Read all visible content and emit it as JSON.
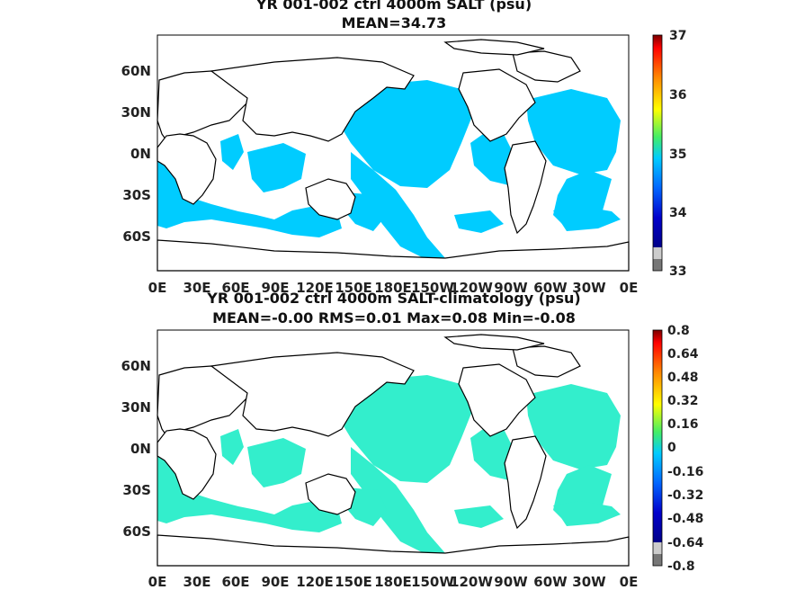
{
  "maps": [
    {
      "title": "YR 001-002 ctrl 4000m SALT (psu)",
      "subtitle": "MEAN=34.73",
      "lat_ticks": [
        "60N",
        "30N",
        "0N",
        "30S",
        "60S"
      ],
      "lon_ticks": [
        "0E",
        "30E",
        "60E",
        "90E",
        "120E",
        "150E",
        "180E",
        "150W",
        "120W",
        "90W",
        "60W",
        "30W",
        "0E"
      ],
      "colorbar": {
        "labels": [
          "37",
          "36",
          "35",
          "34",
          "33"
        ],
        "range": [
          33,
          37
        ]
      },
      "ocean_color": "#00ccff"
    },
    {
      "title": "YR 001-002 ctrl 4000m SALT-climatology (psu)",
      "subtitle": "MEAN=-0.00   RMS=0.01   Max=0.08   Min=-0.08",
      "lat_ticks": [
        "60N",
        "30N",
        "0N",
        "30S",
        "60S"
      ],
      "lon_ticks": [
        "0E",
        "30E",
        "60E",
        "90E",
        "120E",
        "150E",
        "180E",
        "150W",
        "120W",
        "90W",
        "60W",
        "30W",
        "0E"
      ],
      "colorbar": {
        "labels": [
          "0.8",
          "0.64",
          "0.48",
          "0.32",
          "0.16",
          "0",
          "-0.16",
          "-0.32",
          "-0.48",
          "-0.64",
          "-0.8"
        ],
        "range": [
          -0.8,
          0.8
        ]
      },
      "ocean_color": "#33eecc"
    }
  ],
  "colors": {
    "colorbar_stops": [
      "#7a0000",
      "#ff0000",
      "#ff8800",
      "#ffff00",
      "#44ee66",
      "#00ccff",
      "#0066ff",
      "#0000cc",
      "#000088"
    ],
    "colorbar_low_gray": [
      "#cccccc",
      "#777777"
    ]
  }
}
